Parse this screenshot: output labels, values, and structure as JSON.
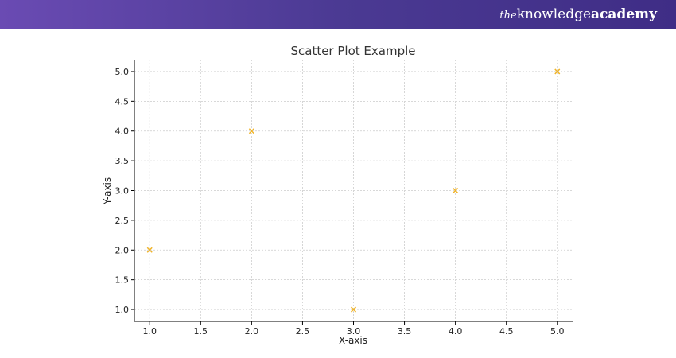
{
  "brand": {
    "the": "the",
    "knowledge": "knowledge",
    "academy": "academy"
  },
  "colors": {
    "banner": "#4f3b98",
    "marker": "#f0b429",
    "grid": "#cccccc",
    "axis": "#000000"
  },
  "chart_data": {
    "type": "scatter",
    "title": "Scatter Plot Example",
    "xlabel": "X-axis",
    "ylabel": "Y-axis",
    "xlim": [
      0.85,
      5.15
    ],
    "ylim": [
      0.8,
      5.2
    ],
    "xticks": [
      1.0,
      1.5,
      2.0,
      2.5,
      3.0,
      3.5,
      4.0,
      4.5,
      5.0
    ],
    "yticks": [
      1.0,
      1.5,
      2.0,
      2.5,
      3.0,
      3.5,
      4.0,
      4.5,
      5.0
    ],
    "xtick_labels": [
      "1.0",
      "1.5",
      "2.0",
      "2.5",
      "3.0",
      "3.5",
      "4.0",
      "4.5",
      "5.0"
    ],
    "ytick_labels": [
      "1.0",
      "1.5",
      "2.0",
      "2.5",
      "3.0",
      "3.5",
      "4.0",
      "4.5",
      "5.0"
    ],
    "grid": true,
    "marker": "x",
    "series": [
      {
        "x": [
          1,
          2,
          3,
          4,
          5
        ],
        "y": [
          2,
          4,
          1,
          3,
          5
        ]
      }
    ]
  }
}
